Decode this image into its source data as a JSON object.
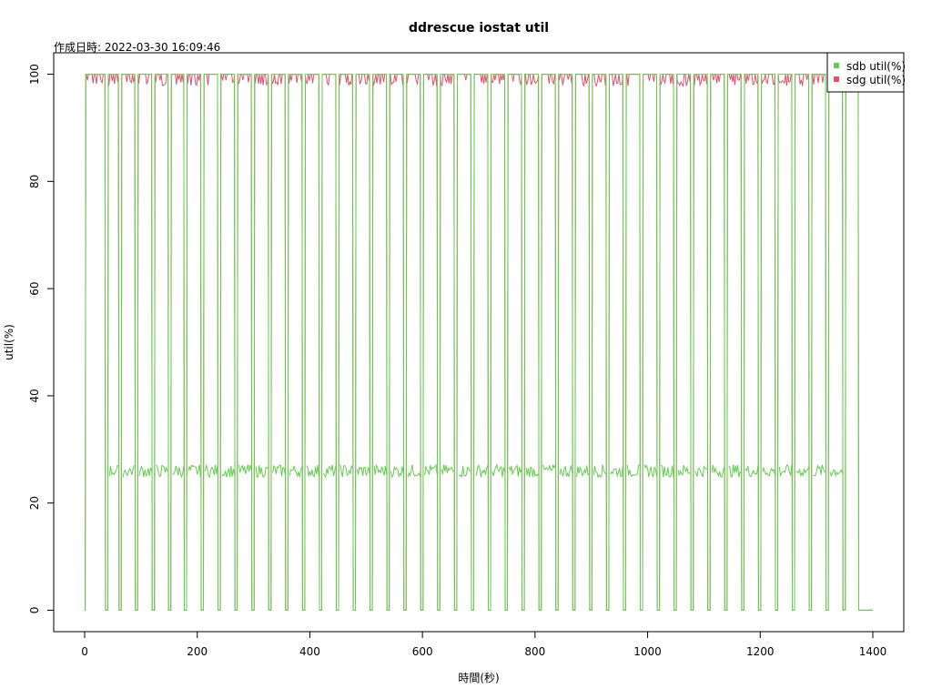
{
  "chart_data": {
    "type": "line",
    "title": "ddrescue iostat util",
    "subtitle": "作成日時: 2022-03-30 16:09:46",
    "xlabel": "時間(秒)",
    "ylabel": "util(%)",
    "xlim": [
      -55,
      1455
    ],
    "ylim": [
      -4,
      104
    ],
    "x_ticks": [
      0,
      200,
      400,
      600,
      800,
      1000,
      1200,
      1400
    ],
    "y_ticks": [
      0,
      20,
      40,
      60,
      80,
      100
    ],
    "legend_position": "top-right",
    "grid": false,
    "series": [
      {
        "name": "sdb util(%)",
        "color": "#61D04F",
        "pulse_starts": [
          0,
          40,
          64,
          93,
          123,
          152,
          180,
          210,
          240,
          270,
          300,
          330,
          360,
          390,
          420,
          450,
          480,
          510,
          540,
          570,
          600,
          630,
          660,
          690,
          720,
          750,
          780,
          810,
          840,
          870,
          900,
          930,
          960,
          990,
          1020,
          1050,
          1080,
          1110,
          1140,
          1170,
          1200,
          1230,
          1260,
          1290,
          1320,
          1350
        ],
        "busy_level": 100,
        "idle_level": 0,
        "between_pulse_level": 26,
        "end_x": 1400
      },
      {
        "name": "sdg util(%)",
        "color": "#DF536B",
        "pulse_starts": [
          0,
          40,
          64,
          93,
          123,
          152,
          180,
          210,
          240,
          270,
          300,
          330,
          360,
          390,
          420,
          450,
          480,
          510,
          540,
          570,
          600,
          630,
          660,
          690,
          720,
          750,
          780,
          810,
          840,
          870,
          900,
          930,
          960,
          990,
          1020,
          1050,
          1080,
          1110,
          1140,
          1170,
          1200,
          1230,
          1260,
          1290,
          1320,
          1350
        ],
        "busy_level": 100,
        "idle_level": 0,
        "end_x": 1400
      }
    ]
  }
}
